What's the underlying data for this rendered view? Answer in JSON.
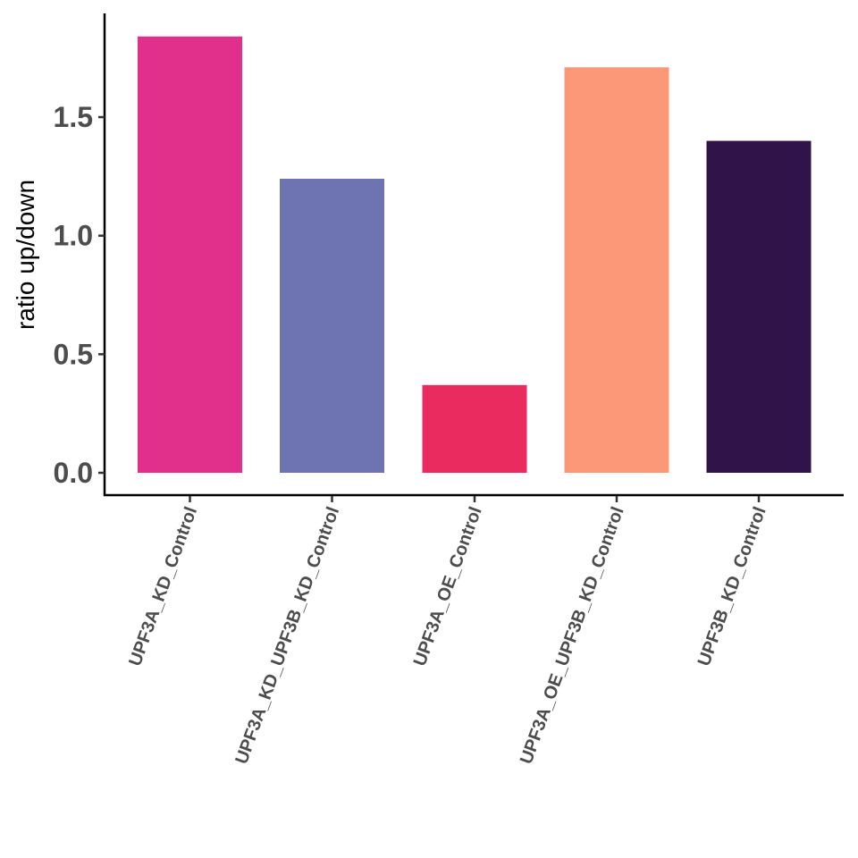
{
  "chart_data": {
    "type": "bar",
    "title": "",
    "xlabel": "",
    "ylabel": "ratio up/down",
    "categories": [
      "UPF3A_KD_Control",
      "UPF3A_KD_UPF3B_KD_Control",
      "UPF3A_OE_Control",
      "UPF3A_OE_UPF3B_KD_Control",
      "UPF3B_KD_Control"
    ],
    "values": [
      1.84,
      1.24,
      0.37,
      1.71,
      1.4
    ],
    "colors": [
      "#E0308C",
      "#6E73B1",
      "#EA2B5F",
      "#FC9877",
      "#2F1349"
    ],
    "yticks": [
      0.0,
      0.5,
      1.0,
      1.5
    ],
    "ytick_labels": [
      "0.0",
      "0.5",
      "1.0",
      "1.5"
    ],
    "ylim": [
      -0.09,
      1.94
    ],
    "x_tick_label_rotation": -70,
    "grid": false,
    "legend": null
  }
}
